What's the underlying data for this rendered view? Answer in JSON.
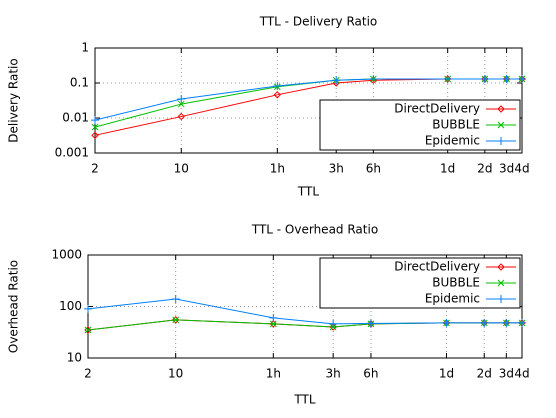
{
  "chart_data": [
    {
      "type": "line",
      "title": "TTL - Delivery Ratio",
      "xlabel": "TTL",
      "ylabel": "Delivery Ratio",
      "xlog": true,
      "ylog": true,
      "grid": true,
      "legend": "lower right",
      "x": [
        2,
        10,
        60,
        180,
        360,
        1440,
        2880,
        4320,
        5760
      ],
      "xlim": [
        2,
        5760
      ],
      "xticks": [
        2,
        10,
        {
          "value": 60,
          "label": "1h"
        },
        {
          "value": 180,
          "label": "3h"
        },
        {
          "value": 360,
          "label": "6h"
        },
        {
          "value": 1440,
          "label": "1d"
        },
        {
          "value": 2880,
          "label": "2d"
        },
        {
          "value": 4320,
          "label": "3d"
        },
        {
          "value": 5760,
          "label": "4d"
        }
      ],
      "ylim": [
        0.001,
        1
      ],
      "yticks": [
        0.001,
        0.01,
        0.1,
        1
      ],
      "series": [
        {
          "name": "DirectDelivery",
          "color": "#ff0000",
          "marker": "diamond",
          "values": [
            0.0032,
            0.011,
            0.046,
            0.1,
            0.12,
            0.13,
            0.13,
            0.13,
            0.13
          ]
        },
        {
          "name": "BUBBLE",
          "color": "#00c000",
          "marker": "x",
          "values": [
            0.0055,
            0.025,
            0.078,
            0.12,
            0.13,
            0.13,
            0.13,
            0.13,
            0.13
          ]
        },
        {
          "name": "Epidemic",
          "color": "#0080ff",
          "marker": "plus",
          "values": [
            0.0087,
            0.035,
            0.082,
            0.12,
            0.13,
            0.13,
            0.13,
            0.13,
            0.13
          ]
        }
      ]
    },
    {
      "type": "line",
      "title": "TTL - Overhead Ratio",
      "xlabel": "TTL",
      "ylabel": "Overhead Ratio",
      "xlog": true,
      "ylog": true,
      "grid": true,
      "legend": "upper right",
      "x": [
        2,
        10,
        60,
        180,
        360,
        1440,
        2880,
        4320,
        5760
      ],
      "xlim": [
        2,
        5760
      ],
      "xticks": [
        2,
        10,
        {
          "value": 60,
          "label": "1h"
        },
        {
          "value": 180,
          "label": "3h"
        },
        {
          "value": 360,
          "label": "6h"
        },
        {
          "value": 1440,
          "label": "1d"
        },
        {
          "value": 2880,
          "label": "2d"
        },
        {
          "value": 4320,
          "label": "3d"
        },
        {
          "value": 5760,
          "label": "4d"
        }
      ],
      "ylim": [
        10,
        1000
      ],
      "yticks": [
        10,
        100,
        1000
      ],
      "series": [
        {
          "name": "DirectDelivery",
          "color": "#ff0000",
          "marker": "diamond",
          "values": [
            35,
            55,
            46,
            40,
            46,
            48,
            48,
            48,
            48
          ]
        },
        {
          "name": "BUBBLE",
          "color": "#00c000",
          "marker": "x",
          "values": [
            35,
            55,
            46,
            40,
            46,
            48,
            48,
            48,
            48
          ]
        },
        {
          "name": "Epidemic",
          "color": "#0080ff",
          "marker": "plus",
          "values": [
            90,
            140,
            60,
            46,
            47,
            48,
            48,
            48,
            48
          ]
        }
      ]
    }
  ]
}
